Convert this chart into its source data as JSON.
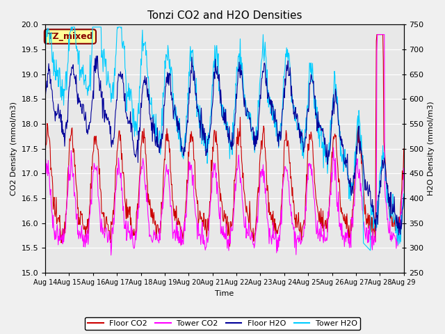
{
  "title": "Tonzi CO2 and H2O Densities",
  "xlabel": "Time",
  "ylabel_left": "CO2 Density (mmol/m3)",
  "ylabel_right": "H2O Density (mmol/m3)",
  "ylim_left": [
    15.0,
    20.0
  ],
  "ylim_right": [
    250,
    750
  ],
  "yticks_left": [
    15.0,
    15.5,
    16.0,
    16.5,
    17.0,
    17.5,
    18.0,
    18.5,
    19.0,
    19.5,
    20.0
  ],
  "yticks_right": [
    250,
    300,
    350,
    400,
    450,
    500,
    550,
    600,
    650,
    700,
    750
  ],
  "xtick_labels": [
    "Aug 14",
    "Aug 15",
    "Aug 16",
    "Aug 17",
    "Aug 18",
    "Aug 19",
    "Aug 20",
    "Aug 21",
    "Aug 22",
    "Aug 23",
    "Aug 24",
    "Aug 25",
    "Aug 26",
    "Aug 27",
    "Aug 28",
    "Aug 29"
  ],
  "colors": {
    "floor_co2": "#cc0000",
    "tower_co2": "#ff00ff",
    "floor_h2o": "#000099",
    "tower_h2o": "#00ccff"
  },
  "legend_labels": [
    "Floor CO2",
    "Tower CO2",
    "Floor H2O",
    "Tower H2O"
  ],
  "annotation_text": "TZ_mixed",
  "annotation_color": "#880000",
  "annotation_bg": "#ffff99",
  "background_color": "#e8e8e8",
  "fig_bg_color": "#f0f0f0",
  "title_fontsize": 11,
  "n_points": 720,
  "seed": 12345
}
